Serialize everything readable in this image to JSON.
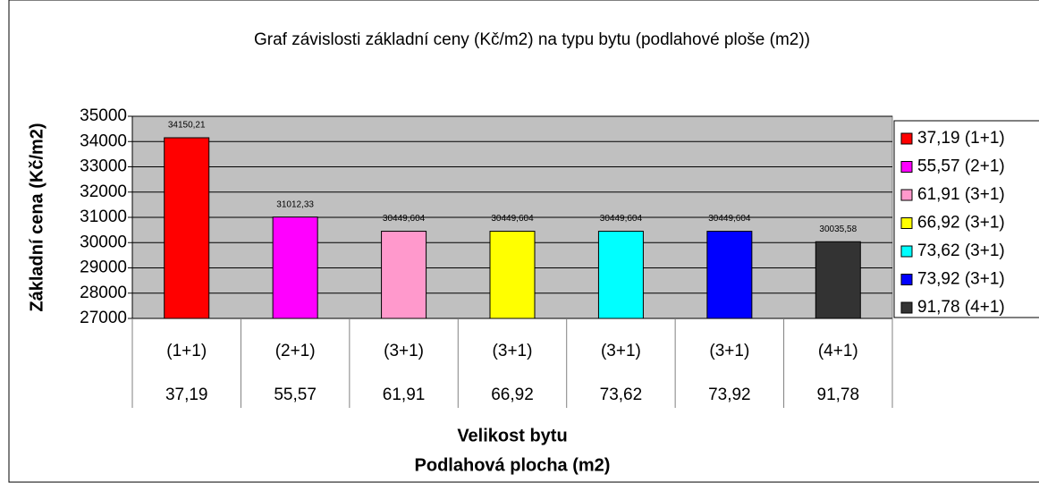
{
  "chart_data": {
    "type": "bar",
    "title": "Graf závislosti základní ceny (Kč/m2) na typu bytu (podlahové ploše (m2))",
    "y_label": "Základní cena (Kč/m2)",
    "x_label": [
      "Velikost bytu",
      "Podlahová plocha (m2)"
    ],
    "categories": [
      "(1+1)",
      "(2+1)",
      "(3+1)",
      "(3+1)",
      "(3+1)",
      "(3+1)",
      "(4+1)"
    ],
    "category_areas": [
      "37,19",
      "55,57",
      "61,91",
      "66,92",
      "73,62",
      "73,92",
      "91,78"
    ],
    "values": [
      34150.21,
      31012.33,
      30449.604,
      30449.604,
      30449.604,
      30449.604,
      30035.58
    ],
    "value_labels": [
      "34150,21",
      "31012,33",
      "30449,604",
      "30449,604",
      "30449,604",
      "30449,604",
      "30035,58"
    ],
    "colors": [
      "#ff0000",
      "#ff00ff",
      "#ff99cc",
      "#ffff00",
      "#00ffff",
      "#0000ff",
      "#333333"
    ],
    "legend": [
      "37,19 (1+1)",
      "55,57 (2+1)",
      "61,91 (3+1)",
      "66,92 (3+1)",
      "73,62 (3+1)",
      "73,92 (3+1)",
      "91,78 (4+1)"
    ],
    "legend_position": "right",
    "ylim": [
      27000,
      35000
    ],
    "yticks": [
      27000,
      28000,
      29000,
      30000,
      31000,
      32000,
      33000,
      34000,
      35000
    ],
    "grid": true,
    "plot_background": "#c0c0c0"
  }
}
